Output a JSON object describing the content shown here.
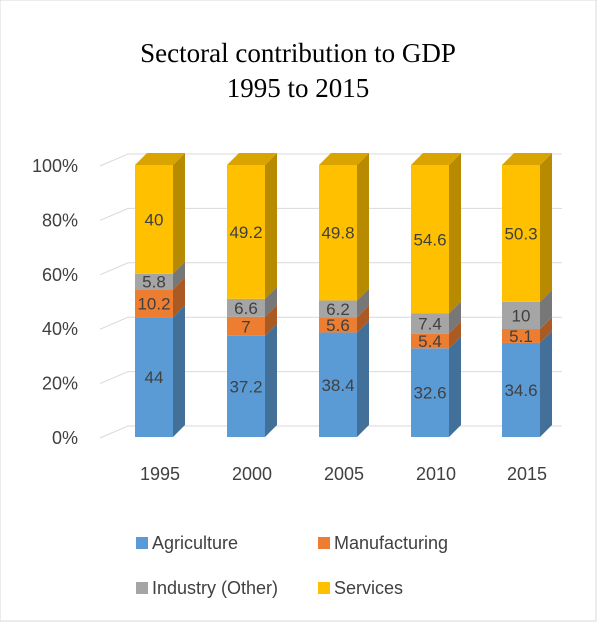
{
  "chart_data": {
    "type": "bar",
    "stacked": "percent",
    "title_lines": [
      "Sectoral contribution to GDP",
      "1995 to 2015"
    ],
    "categories": [
      "1995",
      "2000",
      "2005",
      "2010",
      "2015"
    ],
    "y_ticks": [
      "0%",
      "20%",
      "40%",
      "60%",
      "80%",
      "100%"
    ],
    "ylim": [
      0,
      100
    ],
    "grid": true,
    "legend_position": "bottom",
    "series": [
      {
        "name": "Agriculture",
        "color": "#5B9BD5",
        "values": [
          44,
          37.2,
          38.4,
          32.6,
          34.6
        ]
      },
      {
        "name": "Manufacturing",
        "color": "#ED7D31",
        "values": [
          10.2,
          7,
          5.6,
          5.4,
          5.1
        ]
      },
      {
        "name": "Industry (Other)",
        "color": "#A5A5A5",
        "values": [
          5.8,
          6.6,
          6.2,
          7.4,
          10
        ]
      },
      {
        "name": "Services",
        "color": "#FFC000",
        "values": [
          40,
          49.2,
          49.8,
          54.6,
          50.3
        ]
      }
    ]
  }
}
